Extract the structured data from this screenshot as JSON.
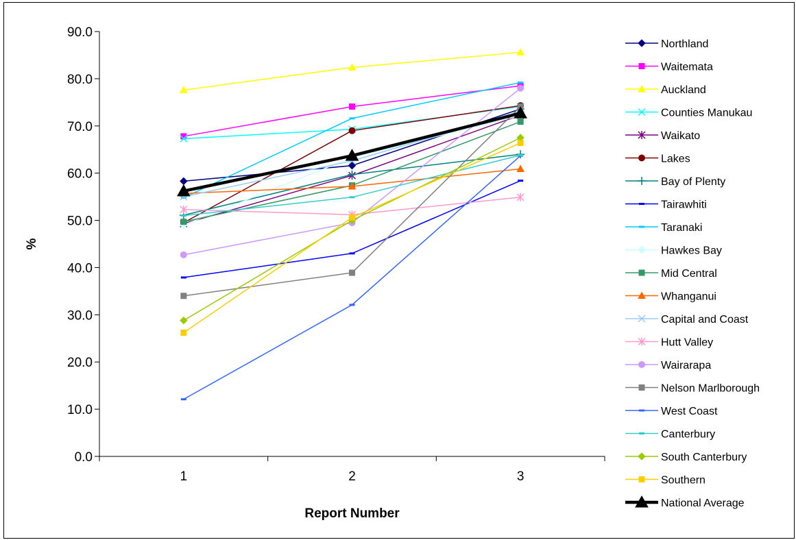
{
  "chart_data": {
    "type": "line",
    "x": [
      1,
      2,
      3
    ],
    "xlabel": "Report Number",
    "ylabel": "%",
    "ylim": [
      0,
      90
    ],
    "yticks": [
      "0.0",
      "10.0",
      "20.0",
      "30.0",
      "40.0",
      "50.0",
      "60.0",
      "70.0",
      "80.0",
      "90.0"
    ],
    "xticks": [
      "1",
      "2",
      "3"
    ],
    "legend_position": "right",
    "grid": false,
    "series": [
      {
        "name": "Northland",
        "values": [
          58.3,
          61.6,
          73.6
        ],
        "color": "#000080",
        "marker": "diamond"
      },
      {
        "name": "Waitemata",
        "values": [
          67.8,
          74.1,
          78.5
        ],
        "color": "#ff00ff",
        "marker": "square"
      },
      {
        "name": "Auckland",
        "values": [
          77.6,
          82.4,
          85.6
        ],
        "color": "#ffff00",
        "marker": "triangle"
      },
      {
        "name": "Counties Manukau",
        "values": [
          67.3,
          69.3,
          74.1
        ],
        "color": "#00ffff",
        "marker": "x"
      },
      {
        "name": "Waikato",
        "values": [
          49.3,
          59.5,
          72.3
        ],
        "color": "#800080",
        "marker": "star"
      },
      {
        "name": "Lakes",
        "values": [
          49.5,
          69.0,
          74.3
        ],
        "color": "#800000",
        "marker": "circle"
      },
      {
        "name": "Bay of Plenty",
        "values": [
          51.1,
          59.7,
          64.0
        ],
        "color": "#008080",
        "marker": "plus"
      },
      {
        "name": "Tairawhiti",
        "values": [
          37.9,
          43.0,
          58.4
        ],
        "color": "#0000ff",
        "marker": "dash"
      },
      {
        "name": "Taranaki",
        "values": [
          54.8,
          71.6,
          79.2
        ],
        "color": "#00ccff",
        "marker": "dash"
      },
      {
        "name": "Hawkes Bay",
        "values": [
          49.0,
          63.3,
          72.2
        ],
        "color": "#ccffff",
        "marker": "diamond"
      },
      {
        "name": "Mid Central",
        "values": [
          49.7,
          57.4,
          70.9
        ],
        "color": "#339966",
        "marker": "square"
      },
      {
        "name": "Whanganui",
        "values": [
          55.7,
          57.2,
          60.9
        ],
        "color": "#ff6600",
        "marker": "triangle"
      },
      {
        "name": "Capital and Coast",
        "values": [
          55.0,
          62.6,
          73.1
        ],
        "color": "#99ccff",
        "marker": "x"
      },
      {
        "name": "Hutt Valley",
        "values": [
          52.3,
          51.2,
          54.9
        ],
        "color": "#ff99cc",
        "marker": "star"
      },
      {
        "name": "Wairarapa",
        "values": [
          42.7,
          49.5,
          78.0
        ],
        "color": "#cc99ff",
        "marker": "circle"
      },
      {
        "name": "Nelson Marlborough",
        "values": [
          34.0,
          38.9,
          74.1
        ],
        "color": "#808080",
        "marker": "square"
      },
      {
        "name": "West Coast",
        "values": [
          12.1,
          32.1,
          63.7
        ],
        "color": "#3366ff",
        "marker": "dash"
      },
      {
        "name": "Canterbury",
        "values": [
          51.0,
          54.9,
          63.8
        ],
        "color": "#33cccc",
        "marker": "dash"
      },
      {
        "name": "South Canterbury",
        "values": [
          28.8,
          50.0,
          67.5
        ],
        "color": "#99cc00",
        "marker": "diamond"
      },
      {
        "name": "Southern",
        "values": [
          26.2,
          50.6,
          66.4
        ],
        "color": "#ffcc00",
        "marker": "square"
      },
      {
        "name": "National Average",
        "values": [
          56.2,
          63.7,
          72.7
        ],
        "color": "#000000",
        "marker": "triangle-big",
        "thick": true
      }
    ]
  }
}
